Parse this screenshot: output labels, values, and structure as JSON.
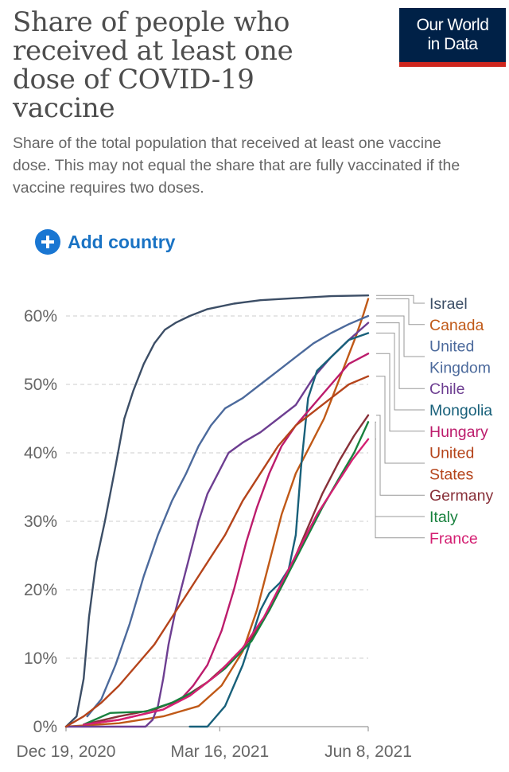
{
  "header": {
    "title": "Share of people who received at least one dose of COVID-19 vaccine",
    "subtitle": "Share of the total population that received at least one vaccine dose. This may not equal the share that are fully vaccinated if the vaccine requires two doses.",
    "logo_line1": "Our World",
    "logo_line2": "in Data"
  },
  "controls": {
    "add_country_label": "Add country"
  },
  "chart_data": {
    "type": "line",
    "title": "Share of people who received at least one dose of COVID-19 vaccine",
    "xlabel": "",
    "ylabel": "",
    "x_unit": "days since Dec 19, 2020",
    "xlim": [
      0,
      171
    ],
    "ylim": [
      0,
      65
    ],
    "y_ticks": [
      0,
      10,
      20,
      30,
      40,
      50,
      60
    ],
    "y_tick_labels": [
      "0%",
      "10%",
      "20%",
      "30%",
      "40%",
      "50%",
      "60%"
    ],
    "x_ticks": [
      0,
      87,
      171
    ],
    "x_tick_labels": [
      "Dec 19, 2020",
      "Mar 16, 2021",
      "Jun 8, 2021"
    ],
    "grid": true,
    "legend": "right",
    "series": [
      {
        "name": "Israel",
        "label_lines": [
          "Israel"
        ],
        "color": "#3c4e66",
        "points": [
          [
            0,
            0
          ],
          [
            6,
            1.5
          ],
          [
            10,
            7
          ],
          [
            13,
            16
          ],
          [
            17,
            24
          ],
          [
            22,
            30
          ],
          [
            28,
            38
          ],
          [
            33,
            45
          ],
          [
            38,
            49
          ],
          [
            44,
            53
          ],
          [
            50,
            56
          ],
          [
            56,
            58
          ],
          [
            62,
            59
          ],
          [
            70,
            60
          ],
          [
            80,
            61
          ],
          [
            95,
            61.8
          ],
          [
            110,
            62.3
          ],
          [
            130,
            62.6
          ],
          [
            150,
            62.9
          ],
          [
            171,
            63
          ]
        ]
      },
      {
        "name": "Canada",
        "label_lines": [
          "Canada"
        ],
        "color": "#c05917",
        "points": [
          [
            0,
            0
          ],
          [
            30,
            0.5
          ],
          [
            55,
            1.5
          ],
          [
            75,
            3
          ],
          [
            88,
            6
          ],
          [
            100,
            11
          ],
          [
            108,
            17
          ],
          [
            115,
            24
          ],
          [
            122,
            31
          ],
          [
            130,
            37
          ],
          [
            138,
            41
          ],
          [
            146,
            45
          ],
          [
            152,
            49
          ],
          [
            158,
            53
          ],
          [
            164,
            57
          ],
          [
            168,
            60
          ],
          [
            171,
            62.5
          ]
        ]
      },
      {
        "name": "United Kingdom",
        "label_lines": [
          "United",
          "Kingdom"
        ],
        "color": "#4c6a9c",
        "points": [
          [
            12,
            1.5
          ],
          [
            20,
            4
          ],
          [
            28,
            9
          ],
          [
            36,
            15
          ],
          [
            44,
            22
          ],
          [
            52,
            28
          ],
          [
            60,
            33
          ],
          [
            68,
            37
          ],
          [
            75,
            41
          ],
          [
            82,
            44
          ],
          [
            90,
            46.5
          ],
          [
            100,
            48
          ],
          [
            110,
            50
          ],
          [
            120,
            52
          ],
          [
            130,
            54
          ],
          [
            140,
            56
          ],
          [
            150,
            57.5
          ],
          [
            160,
            58.8
          ],
          [
            171,
            60
          ]
        ]
      },
      {
        "name": "Chile",
        "label_lines": [
          "Chile"
        ],
        "color": "#6d3e91",
        "points": [
          [
            0,
            0
          ],
          [
            45,
            0
          ],
          [
            49,
            1
          ],
          [
            52,
            3
          ],
          [
            55,
            7
          ],
          [
            58,
            12
          ],
          [
            62,
            17
          ],
          [
            66,
            21
          ],
          [
            70,
            25
          ],
          [
            75,
            30
          ],
          [
            80,
            34
          ],
          [
            86,
            37
          ],
          [
            92,
            40
          ],
          [
            100,
            41.5
          ],
          [
            110,
            43
          ],
          [
            120,
            45
          ],
          [
            130,
            47
          ],
          [
            140,
            51
          ],
          [
            150,
            54
          ],
          [
            160,
            56.5
          ],
          [
            171,
            59
          ]
        ]
      },
      {
        "name": "Mongolia",
        "label_lines": [
          "Mongolia"
        ],
        "color": "#18607a",
        "points": [
          [
            70,
            0
          ],
          [
            80,
            0
          ],
          [
            85,
            1.5
          ],
          [
            90,
            3
          ],
          [
            95,
            6
          ],
          [
            100,
            9
          ],
          [
            105,
            13
          ],
          [
            110,
            17
          ],
          [
            115,
            19.5
          ],
          [
            121,
            21
          ],
          [
            126,
            23
          ],
          [
            130,
            28
          ],
          [
            133,
            38
          ],
          [
            137,
            48
          ],
          [
            142,
            52
          ],
          [
            150,
            54
          ],
          [
            160,
            56.5
          ],
          [
            171,
            57.5
          ]
        ]
      },
      {
        "name": "Hungary",
        "label_lines": [
          "Hungary"
        ],
        "color": "#bc1c6c",
        "points": [
          [
            10,
            0.3
          ],
          [
            30,
            1
          ],
          [
            55,
            2.5
          ],
          [
            65,
            4
          ],
          [
            72,
            6
          ],
          [
            80,
            9
          ],
          [
            88,
            14
          ],
          [
            95,
            20
          ],
          [
            102,
            27
          ],
          [
            108,
            32
          ],
          [
            115,
            37
          ],
          [
            122,
            41
          ],
          [
            130,
            44
          ],
          [
            140,
            47
          ],
          [
            150,
            50
          ],
          [
            160,
            53
          ],
          [
            171,
            54.5
          ]
        ]
      },
      {
        "name": "United States",
        "label_lines": [
          "United",
          "States"
        ],
        "color": "#b5441b",
        "points": [
          [
            0,
            0
          ],
          [
            10,
            1.5
          ],
          [
            20,
            3.5
          ],
          [
            30,
            6
          ],
          [
            40,
            9
          ],
          [
            50,
            12
          ],
          [
            60,
            16
          ],
          [
            70,
            20
          ],
          [
            80,
            24
          ],
          [
            90,
            28
          ],
          [
            100,
            33
          ],
          [
            110,
            37
          ],
          [
            120,
            41
          ],
          [
            130,
            44
          ],
          [
            140,
            46
          ],
          [
            150,
            48
          ],
          [
            160,
            50
          ],
          [
            171,
            51.2
          ]
        ]
      },
      {
        "name": "Germany",
        "label_lines": [
          "Germany"
        ],
        "color": "#883039",
        "points": [
          [
            10,
            0.3
          ],
          [
            30,
            1.5
          ],
          [
            50,
            2.5
          ],
          [
            65,
            4
          ],
          [
            80,
            6.5
          ],
          [
            95,
            10
          ],
          [
            105,
            13
          ],
          [
            115,
            17
          ],
          [
            125,
            22
          ],
          [
            135,
            28
          ],
          [
            145,
            34
          ],
          [
            155,
            39
          ],
          [
            163,
            42.5
          ],
          [
            171,
            45.5
          ]
        ]
      },
      {
        "name": "Italy",
        "label_lines": [
          "Italy"
        ],
        "color": "#18813e",
        "points": [
          [
            10,
            0.3
          ],
          [
            25,
            2
          ],
          [
            45,
            2.2
          ],
          [
            60,
            3.5
          ],
          [
            75,
            5.5
          ],
          [
            90,
            8.5
          ],
          [
            105,
            12.5
          ],
          [
            115,
            17
          ],
          [
            125,
            22
          ],
          [
            135,
            27
          ],
          [
            145,
            32
          ],
          [
            155,
            36.5
          ],
          [
            163,
            40
          ],
          [
            171,
            44.5
          ]
        ]
      },
      {
        "name": "France",
        "label_lines": [
          "France"
        ],
        "color": "#d41f72",
        "points": [
          [
            10,
            0.3
          ],
          [
            30,
            1
          ],
          [
            55,
            2.5
          ],
          [
            70,
            4.5
          ],
          [
            85,
            7.5
          ],
          [
            100,
            11.5
          ],
          [
            112,
            16
          ],
          [
            122,
            21
          ],
          [
            132,
            26
          ],
          [
            142,
            31
          ],
          [
            152,
            35
          ],
          [
            162,
            39
          ],
          [
            171,
            42
          ]
        ]
      }
    ]
  }
}
